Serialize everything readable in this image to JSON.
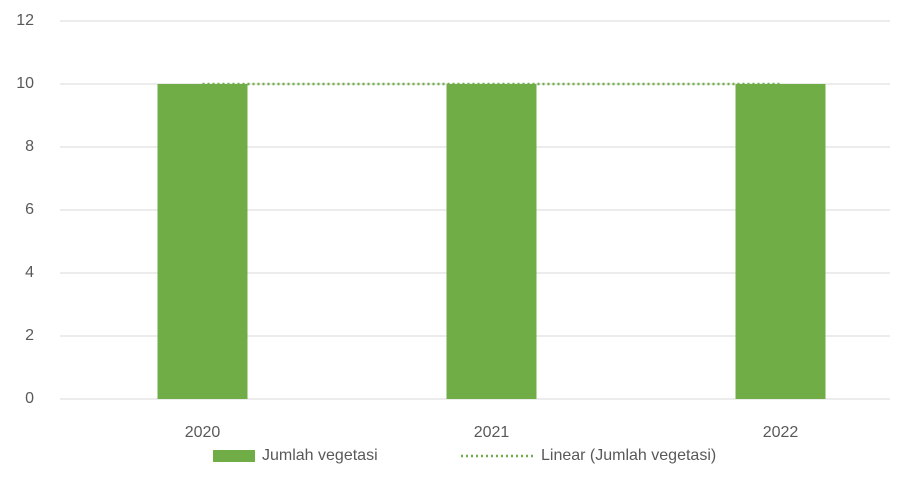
{
  "chart_data": {
    "type": "bar",
    "categories": [
      "2020",
      "2021",
      "2022"
    ],
    "series": [
      {
        "name": "Jumlah vegetasi",
        "color": "#70ad47",
        "values": [
          10,
          10,
          10
        ]
      },
      {
        "name": "Linear (Jumlah vegetasi)",
        "color": "#70ad47",
        "type": "trendline",
        "values": [
          10,
          10,
          10
        ]
      }
    ],
    "ylim": [
      0,
      12
    ],
    "yticks": [
      0,
      2,
      4,
      6,
      8,
      10,
      12
    ],
    "grid": true,
    "legend": "bottom"
  }
}
